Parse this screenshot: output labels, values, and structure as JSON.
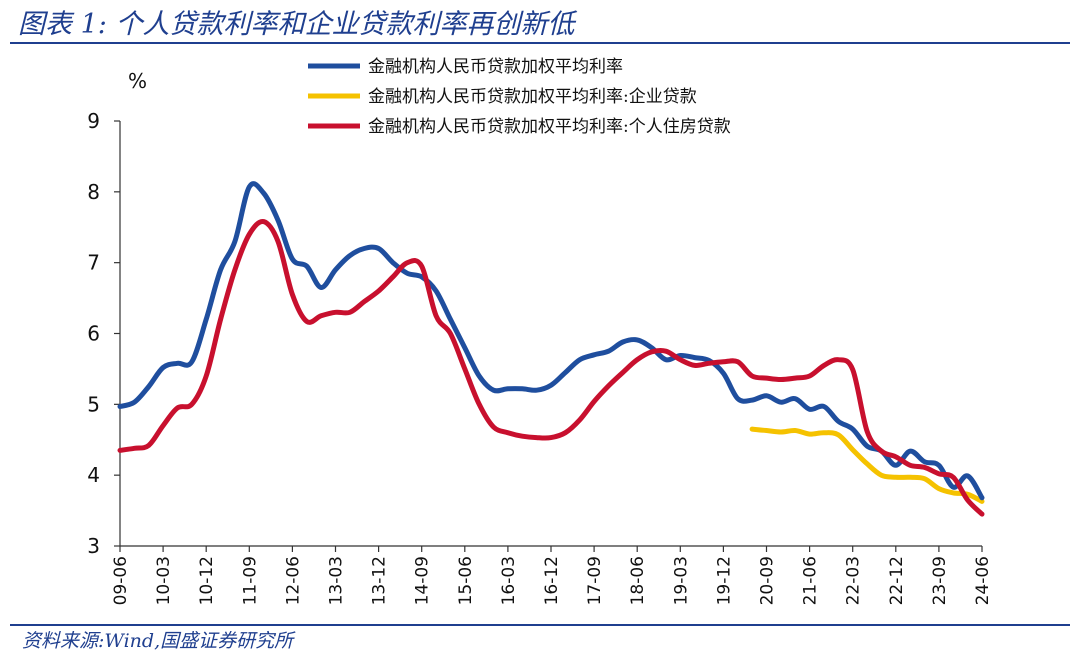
{
  "header": {
    "title": "图表 1:  个人贷款利率和企业贷款利率再创新低"
  },
  "footer": {
    "source": "资料来源:Wind,国盛证券研究所"
  },
  "chart_data": {
    "type": "line",
    "unit_label": "%",
    "ylim": [
      3,
      9
    ],
    "yticks": [
      3,
      4,
      5,
      6,
      7,
      8,
      9
    ],
    "xlim": [
      "2009-06",
      "2024-06"
    ],
    "xtick_labels": [
      "09-06",
      "10-03",
      "10-12",
      "11-09",
      "12-06",
      "13-03",
      "13-12",
      "14-09",
      "15-06",
      "16-03",
      "16-12",
      "17-09",
      "18-06",
      "19-03",
      "19-12",
      "20-09",
      "21-06",
      "22-03",
      "22-12",
      "23-09",
      "24-06"
    ],
    "grid": false,
    "legend_position": "top",
    "series": [
      {
        "name": "金融机构人民币贷款加权平均利率",
        "color": "#1f4e9e",
        "points": [
          [
            "2009-06",
            4.97
          ],
          [
            "2009-09",
            5.03
          ],
          [
            "2009-12",
            5.25
          ],
          [
            "2010-03",
            5.52
          ],
          [
            "2010-06",
            5.58
          ],
          [
            "2010-09",
            5.6
          ],
          [
            "2010-12",
            6.2
          ],
          [
            "2011-03",
            6.9
          ],
          [
            "2011-06",
            7.3
          ],
          [
            "2011-09",
            8.07
          ],
          [
            "2011-12",
            7.98
          ],
          [
            "2012-03",
            7.6
          ],
          [
            "2012-06",
            7.05
          ],
          [
            "2012-09",
            6.95
          ],
          [
            "2012-12",
            6.65
          ],
          [
            "2013-03",
            6.9
          ],
          [
            "2013-06",
            7.1
          ],
          [
            "2013-09",
            7.2
          ],
          [
            "2013-12",
            7.2
          ],
          [
            "2014-03",
            7.0
          ],
          [
            "2014-06",
            6.85
          ],
          [
            "2014-09",
            6.8
          ],
          [
            "2014-12",
            6.6
          ],
          [
            "2015-03",
            6.2
          ],
          [
            "2015-06",
            5.8
          ],
          [
            "2015-09",
            5.4
          ],
          [
            "2015-12",
            5.2
          ],
          [
            "2016-03",
            5.22
          ],
          [
            "2016-06",
            5.22
          ],
          [
            "2016-09",
            5.2
          ],
          [
            "2016-12",
            5.27
          ],
          [
            "2017-03",
            5.45
          ],
          [
            "2017-06",
            5.63
          ],
          [
            "2017-09",
            5.7
          ],
          [
            "2017-12",
            5.75
          ],
          [
            "2018-03",
            5.88
          ],
          [
            "2018-06",
            5.91
          ],
          [
            "2018-09",
            5.8
          ],
          [
            "2018-12",
            5.63
          ],
          [
            "2019-03",
            5.69
          ],
          [
            "2019-06",
            5.66
          ],
          [
            "2019-09",
            5.62
          ],
          [
            "2019-12",
            5.44
          ],
          [
            "2020-03",
            5.08
          ],
          [
            "2020-06",
            5.06
          ],
          [
            "2020-09",
            5.12
          ],
          [
            "2020-12",
            5.03
          ],
          [
            "2021-03",
            5.08
          ],
          [
            "2021-06",
            4.93
          ],
          [
            "2021-09",
            4.97
          ],
          [
            "2021-12",
            4.76
          ],
          [
            "2022-03",
            4.65
          ],
          [
            "2022-06",
            4.41
          ],
          [
            "2022-09",
            4.34
          ],
          [
            "2022-12",
            4.14
          ],
          [
            "2023-03",
            4.34
          ],
          [
            "2023-06",
            4.19
          ],
          [
            "2023-09",
            4.14
          ],
          [
            "2023-12",
            3.83
          ],
          [
            "2024-03",
            3.99
          ],
          [
            "2024-06",
            3.68
          ]
        ]
      },
      {
        "name": "金融机构人民币贷款加权平均利率:企业贷款",
        "color": "#f5c200",
        "points": [
          [
            "2020-06",
            4.65
          ],
          [
            "2020-09",
            4.63
          ],
          [
            "2020-12",
            4.61
          ],
          [
            "2021-03",
            4.63
          ],
          [
            "2021-06",
            4.58
          ],
          [
            "2021-09",
            4.6
          ],
          [
            "2021-12",
            4.57
          ],
          [
            "2022-03",
            4.36
          ],
          [
            "2022-06",
            4.16
          ],
          [
            "2022-09",
            4.0
          ],
          [
            "2022-12",
            3.97
          ],
          [
            "2023-03",
            3.97
          ],
          [
            "2023-06",
            3.95
          ],
          [
            "2023-09",
            3.81
          ],
          [
            "2023-12",
            3.75
          ],
          [
            "2024-03",
            3.73
          ],
          [
            "2024-06",
            3.63
          ]
        ]
      },
      {
        "name": "金融机构人民币贷款加权平均利率:个人住房贷款",
        "color": "#c8102e",
        "points": [
          [
            "2009-06",
            4.35
          ],
          [
            "2009-09",
            4.38
          ],
          [
            "2009-12",
            4.42
          ],
          [
            "2010-03",
            4.7
          ],
          [
            "2010-06",
            4.95
          ],
          [
            "2010-09",
            5.0
          ],
          [
            "2010-12",
            5.4
          ],
          [
            "2011-03",
            6.2
          ],
          [
            "2011-06",
            6.9
          ],
          [
            "2011-09",
            7.4
          ],
          [
            "2011-12",
            7.58
          ],
          [
            "2012-03",
            7.3
          ],
          [
            "2012-06",
            6.55
          ],
          [
            "2012-09",
            6.17
          ],
          [
            "2012-12",
            6.25
          ],
          [
            "2013-03",
            6.3
          ],
          [
            "2013-06",
            6.3
          ],
          [
            "2013-09",
            6.45
          ],
          [
            "2013-12",
            6.6
          ],
          [
            "2014-03",
            6.8
          ],
          [
            "2014-06",
            7.0
          ],
          [
            "2014-09",
            6.95
          ],
          [
            "2014-12",
            6.25
          ],
          [
            "2015-03",
            6.0
          ],
          [
            "2015-06",
            5.5
          ],
          [
            "2015-09",
            5.0
          ],
          [
            "2015-12",
            4.68
          ],
          [
            "2016-03",
            4.6
          ],
          [
            "2016-06",
            4.55
          ],
          [
            "2016-09",
            4.53
          ],
          [
            "2016-12",
            4.53
          ],
          [
            "2017-03",
            4.6
          ],
          [
            "2017-06",
            4.78
          ],
          [
            "2017-09",
            5.04
          ],
          [
            "2017-12",
            5.26
          ],
          [
            "2018-03",
            5.45
          ],
          [
            "2018-06",
            5.63
          ],
          [
            "2018-09",
            5.74
          ],
          [
            "2018-12",
            5.75
          ],
          [
            "2019-03",
            5.63
          ],
          [
            "2019-06",
            5.55
          ],
          [
            "2019-09",
            5.58
          ],
          [
            "2019-12",
            5.6
          ],
          [
            "2020-03",
            5.6
          ],
          [
            "2020-06",
            5.4
          ],
          [
            "2020-09",
            5.37
          ],
          [
            "2020-12",
            5.35
          ],
          [
            "2021-03",
            5.37
          ],
          [
            "2021-06",
            5.4
          ],
          [
            "2021-09",
            5.55
          ],
          [
            "2021-12",
            5.63
          ],
          [
            "2022-03",
            5.49
          ],
          [
            "2022-06",
            4.62
          ],
          [
            "2022-09",
            4.34
          ],
          [
            "2022-12",
            4.26
          ],
          [
            "2023-03",
            4.14
          ],
          [
            "2023-06",
            4.11
          ],
          [
            "2023-09",
            4.02
          ],
          [
            "2023-12",
            3.97
          ],
          [
            "2024-03",
            3.65
          ],
          [
            "2024-06",
            3.45
          ]
        ]
      }
    ]
  }
}
